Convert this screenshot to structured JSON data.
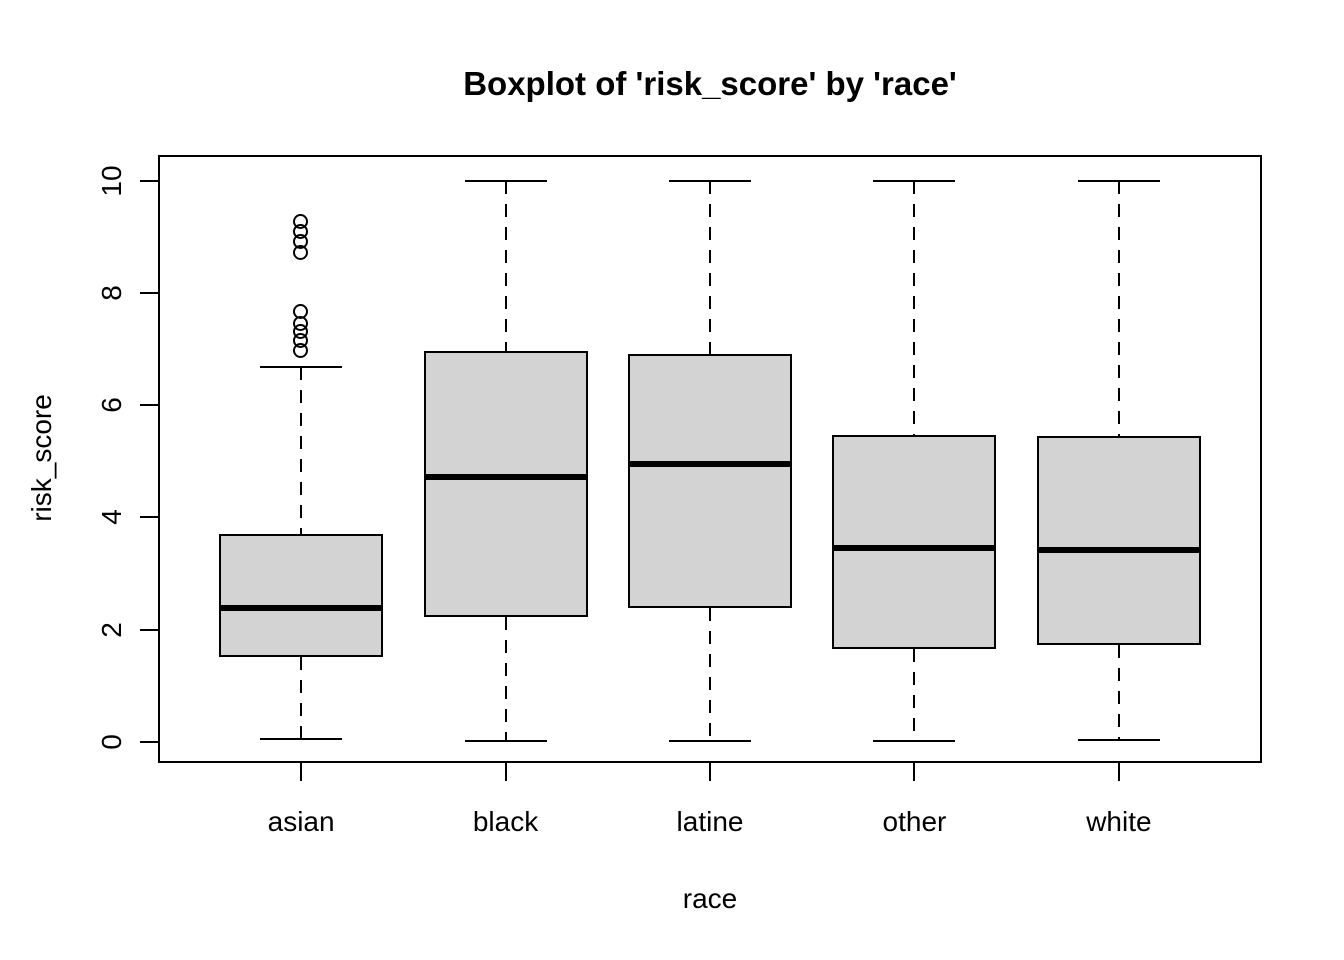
{
  "figure": {
    "title": "Boxplot of 'risk_score' by 'race'"
  },
  "chart_data": {
    "type": "boxplot",
    "title": "Boxplot of 'risk_score' by 'race'",
    "xlabel": "race",
    "ylabel": "risk_score",
    "categories": [
      "asian",
      "black",
      "latine",
      "other",
      "white"
    ],
    "y_ticks": [
      0,
      2,
      4,
      6,
      8,
      10
    ],
    "ylim": [
      -0.38,
      10.46
    ],
    "grid": false,
    "legend": "none",
    "box_fill": "#d3d3d3",
    "line_color": "#000000",
    "background": "#ffffff",
    "series": [
      {
        "name": "asian",
        "whisker_low": 0.04,
        "q1": 1.51,
        "median": 2.38,
        "q3": 3.71,
        "whisker_high": 6.68,
        "outliers": [
          6.97,
          7.15,
          7.3,
          7.45,
          7.66,
          8.72,
          8.9,
          9.08,
          9.26
        ]
      },
      {
        "name": "black",
        "whisker_low": 0.02,
        "q1": 2.22,
        "median": 4.72,
        "q3": 6.96,
        "whisker_high": 10,
        "outliers": []
      },
      {
        "name": "latine",
        "whisker_low": 0.02,
        "q1": 2.39,
        "median": 4.95,
        "q3": 6.91,
        "whisker_high": 10,
        "outliers": []
      },
      {
        "name": "other",
        "whisker_low": 0.02,
        "q1": 1.66,
        "median": 3.46,
        "q3": 5.47,
        "whisker_high": 10,
        "outliers": []
      },
      {
        "name": "white",
        "whisker_low": 0.03,
        "q1": 1.72,
        "median": 3.42,
        "q3": 5.45,
        "whisker_high": 10,
        "outliers": []
      }
    ]
  }
}
